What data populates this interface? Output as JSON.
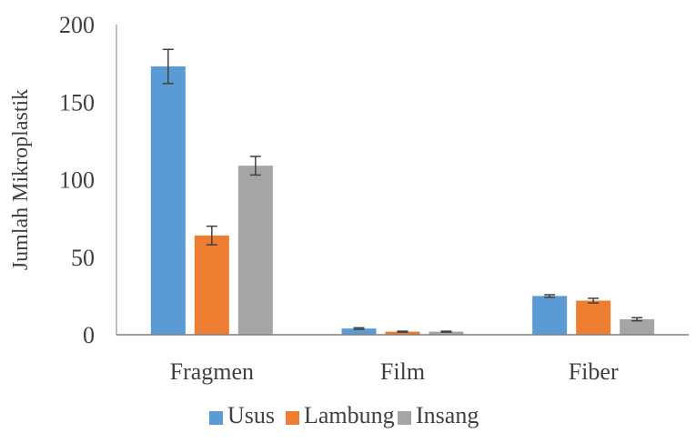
{
  "chart_data": {
    "type": "bar",
    "title": "",
    "xlabel": "",
    "ylabel": "Jumlah Mikroplastik",
    "categories": [
      "Fragmen",
      "Film",
      "Fiber"
    ],
    "series": [
      {
        "name": "Usus",
        "color": "#5B9BD5",
        "values": [
          173,
          4,
          25
        ],
        "errors": [
          11,
          0.5,
          0.8
        ]
      },
      {
        "name": "Lambung",
        "color": "#ED7D31",
        "values": [
          64,
          2,
          22
        ],
        "errors": [
          6,
          0.3,
          1.5
        ]
      },
      {
        "name": "Insang",
        "color": "#A5A5A5",
        "values": [
          109,
          2,
          10
        ],
        "errors": [
          6,
          0.3,
          1
        ]
      }
    ],
    "ylim": [
      0,
      200
    ],
    "yticks": [
      0,
      50,
      100,
      150,
      200
    ],
    "grid": false,
    "legend_position": "bottom",
    "axis_color": "#7f7f7f",
    "error_bar_color": "#404040"
  }
}
